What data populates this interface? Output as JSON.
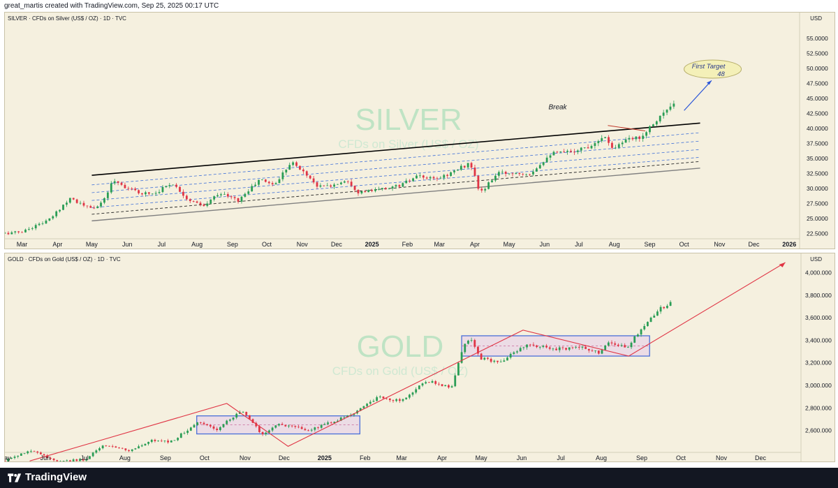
{
  "header": {
    "caption": "great_martis created with TradingView.com, Sep 25, 2025 00:17 UTC"
  },
  "footer": {
    "brand": "TradingView"
  },
  "colors": {
    "pane_bg": "#f5f0df",
    "up": "#2a9d55",
    "down": "#e03545",
    "channel_top": "#000000",
    "channel_mid": "#3d6fd8",
    "channel_low": "#808080",
    "gold_box": "#4a6fd8",
    "gold_zigzag": "#e03545",
    "target_fill": "#f4f0b8"
  },
  "silver": {
    "title": "SILVER · CFDs on Silver (US$ / OZ) · 1D · TVC",
    "currency": "USD",
    "watermark_symbol": "SILVER",
    "watermark_desc": "CFDs on Silver (US$ / OZ)",
    "y_ticks": [
      "55.0000",
      "52.5000",
      "50.0000",
      "47.5000",
      "45.0000",
      "42.5000",
      "40.0000",
      "37.5000",
      "35.0000",
      "32.5000",
      "30.0000",
      "27.5000",
      "25.0000",
      "22.5000"
    ],
    "x_ticks": [
      "Mar",
      "Apr",
      "May",
      "Jun",
      "Jul",
      "Aug",
      "Sep",
      "Oct",
      "Nov",
      "Dec",
      "2025",
      "Feb",
      "Mar",
      "Apr",
      "May",
      "Jun",
      "Jul",
      "Aug",
      "Sep",
      "Oct",
      "Nov",
      "Dec",
      "2026"
    ],
    "annotations": {
      "break": "Break",
      "target_line1": "First Target",
      "target_line2": "48"
    }
  },
  "gold": {
    "title": "GOLD · CFDs on Gold (US$ / OZ) · 1D · TVC",
    "currency": "USD",
    "watermark_symbol": "GOLD",
    "watermark_desc": "CFDs on Gold (US$ / OZ)",
    "y_ticks": [
      "4,000.000",
      "3,800.000",
      "3,600.000",
      "3,400.000",
      "3,200.000",
      "3,000.000",
      "2,800.000",
      "2,600.000"
    ],
    "x_ticks": [
      "May",
      "Jun",
      "Jul",
      "Aug",
      "Sep",
      "Oct",
      "Nov",
      "Dec",
      "2025",
      "Feb",
      "Mar",
      "Apr",
      "May",
      "Jun",
      "Jul",
      "Aug",
      "Sep",
      "Oct",
      "Nov",
      "Dec"
    ]
  },
  "chart_data": [
    {
      "type": "candlestick",
      "symbol": "SILVER",
      "ylim": [
        21.5,
        57.0
      ],
      "x_range": [
        "2024-02-15",
        "2026-01-10"
      ],
      "path": [
        [
          "2024-02-15",
          22.5
        ],
        [
          "2024-03-01",
          22.8
        ],
        [
          "2024-03-25",
          24.8
        ],
        [
          "2024-04-12",
          28.5
        ],
        [
          "2024-04-22",
          27.3
        ],
        [
          "2024-05-01",
          26.6
        ],
        [
          "2024-05-10",
          27.5
        ],
        [
          "2024-05-20",
          31.5
        ],
        [
          "2024-05-28",
          30.5
        ],
        [
          "2024-06-10",
          29.3
        ],
        [
          "2024-06-25",
          29.2
        ],
        [
          "2024-07-10",
          31.0
        ],
        [
          "2024-07-25",
          28.0
        ],
        [
          "2024-08-07",
          27.0
        ],
        [
          "2024-08-20",
          29.3
        ],
        [
          "2024-09-06",
          28.0
        ],
        [
          "2024-09-25",
          31.5
        ],
        [
          "2024-10-08",
          30.6
        ],
        [
          "2024-10-22",
          34.5
        ],
        [
          "2024-11-05",
          32.3
        ],
        [
          "2024-11-15",
          30.3
        ],
        [
          "2024-11-28",
          30.5
        ],
        [
          "2024-12-10",
          31.5
        ],
        [
          "2024-12-20",
          29.4
        ],
        [
          "2025-01-02",
          29.6
        ],
        [
          "2025-01-25",
          30.5
        ],
        [
          "2025-02-10",
          32.0
        ],
        [
          "2025-02-25",
          31.5
        ],
        [
          "2025-03-10",
          32.5
        ],
        [
          "2025-03-28",
          34.3
        ],
        [
          "2025-04-04",
          30.0
        ],
        [
          "2025-04-08",
          29.5
        ],
        [
          "2025-04-20",
          32.5
        ],
        [
          "2025-05-05",
          32.6
        ],
        [
          "2025-05-20",
          32.6
        ],
        [
          "2025-06-06",
          35.8
        ],
        [
          "2025-06-20",
          36.0
        ],
        [
          "2025-07-10",
          37.0
        ],
        [
          "2025-07-22",
          38.8
        ],
        [
          "2025-07-31",
          36.8
        ],
        [
          "2025-08-10",
          37.9
        ],
        [
          "2025-08-25",
          38.7
        ],
        [
          "2025-09-05",
          41.2
        ],
        [
          "2025-09-20",
          43.7
        ],
        [
          "2025-09-24",
          44.0
        ]
      ],
      "channel": {
        "top": [
          [
            "2024-05-01",
            32.2
          ],
          [
            "2025-10-15",
            40.9
          ]
        ],
        "bottom": [
          [
            "2024-05-01",
            24.6
          ],
          [
            "2025-10-15",
            33.4
          ]
        ],
        "mid_dashed": [
          [
            30.6,
            39.3
          ],
          [
            29.3,
            37.9
          ],
          [
            28.0,
            36.5
          ],
          [
            26.8,
            35.2
          ]
        ],
        "mid_dashed_black": [
          25.7,
          34.5
        ]
      },
      "target": 48
    },
    {
      "type": "candlestick",
      "symbol": "GOLD",
      "ylim": [
        2400,
        4170
      ],
      "x_range": [
        "2024-05-01",
        "2026-01-01"
      ],
      "path": [
        [
          "2024-05-01",
          2330
        ],
        [
          "2024-05-15",
          2400
        ],
        [
          "2024-05-22",
          2420
        ],
        [
          "2024-06-10",
          2330
        ],
        [
          "2024-07-01",
          2340
        ],
        [
          "2024-07-16",
          2470
        ],
        [
          "2024-08-05",
          2420
        ],
        [
          "2024-08-20",
          2510
        ],
        [
          "2024-09-05",
          2500
        ],
        [
          "2024-09-26",
          2670
        ],
        [
          "2024-10-10",
          2610
        ],
        [
          "2024-10-30",
          2780
        ],
        [
          "2024-11-14",
          2565
        ],
        [
          "2024-11-25",
          2650
        ],
        [
          "2024-12-05",
          2640
        ],
        [
          "2024-12-20",
          2600
        ],
        [
          "2025-01-10",
          2690
        ],
        [
          "2025-01-25",
          2770
        ],
        [
          "2025-02-11",
          2900
        ],
        [
          "2025-02-28",
          2860
        ],
        [
          "2025-03-20",
          3040
        ],
        [
          "2025-04-08",
          2980
        ],
        [
          "2025-04-17",
          3330
        ],
        [
          "2025-04-22",
          3420
        ],
        [
          "2025-05-01",
          3240
        ],
        [
          "2025-05-15",
          3200
        ],
        [
          "2025-06-05",
          3370
        ],
        [
          "2025-06-25",
          3320
        ],
        [
          "2025-07-15",
          3340
        ],
        [
          "2025-07-30",
          3290
        ],
        [
          "2025-08-08",
          3390
        ],
        [
          "2025-08-20",
          3330
        ],
        [
          "2025-09-03",
          3540
        ],
        [
          "2025-09-15",
          3680
        ],
        [
          "2025-09-24",
          3740
        ]
      ],
      "ranges": [
        {
          "from": "2024-09-25",
          "to": "2025-01-28",
          "low": 2570,
          "high": 2730
        },
        {
          "from": "2025-04-16",
          "to": "2025-09-07",
          "low": 3260,
          "high": 3440
        }
      ],
      "zigzag": [
        [
          "2024-05-20",
          2330
        ],
        [
          "2024-10-18",
          2840
        ],
        [
          "2024-12-04",
          2460
        ],
        [
          "2025-06-02",
          3490
        ],
        [
          "2025-08-22",
          3260
        ],
        [
          "2025-12-20",
          4090
        ]
      ]
    }
  ]
}
